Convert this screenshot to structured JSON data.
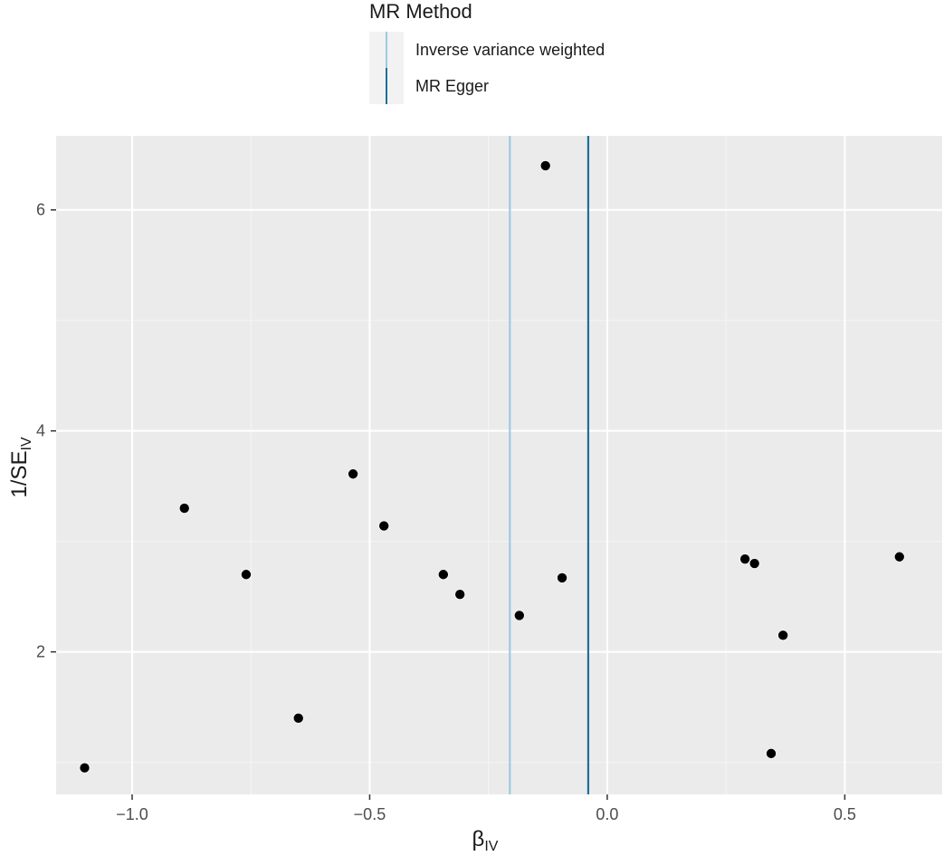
{
  "chart_data": {
    "type": "scatter",
    "x": [
      -1.1,
      -0.89,
      -0.76,
      -0.65,
      -0.535,
      -0.47,
      -0.345,
      -0.31,
      -0.185,
      -0.095,
      0.29,
      0.31,
      0.345,
      0.37,
      0.615,
      -0.13
    ],
    "y": [
      0.95,
      3.3,
      2.7,
      1.4,
      3.61,
      3.14,
      2.7,
      2.52,
      2.33,
      2.67,
      2.84,
      2.8,
      1.08,
      2.15,
      2.86,
      6.4
    ],
    "xlim": [
      -1.16,
      0.705
    ],
    "ylim": [
      0.71,
      6.67
    ],
    "xticks": [
      -1.0,
      -0.5,
      0.0,
      0.5
    ],
    "xtick_labels": [
      "−1.0",
      "−0.5",
      "0.0",
      "0.5"
    ],
    "yticks": [
      2,
      4,
      6
    ],
    "ytick_labels": [
      "2",
      "4",
      "6"
    ],
    "xlabel": {
      "main": "β",
      "sub": "IV"
    },
    "ylabel": {
      "main": "1/SE",
      "sub": "IV"
    },
    "vlines": [
      {
        "name": "Inverse variance weighted",
        "x": -0.205,
        "color": "#9ecae1"
      },
      {
        "name": "MR Egger",
        "x": -0.04,
        "color": "#1f6f9a"
      }
    ],
    "legend": {
      "title": "MR Method",
      "position": "top",
      "entries": [
        "Inverse variance weighted",
        "MR Egger"
      ]
    },
    "grid": true,
    "colors": {
      "panel_bg": "#ebebeb",
      "grid_major": "#ffffff",
      "grid_minor": "#f5f5f5",
      "point": "#000000"
    }
  }
}
